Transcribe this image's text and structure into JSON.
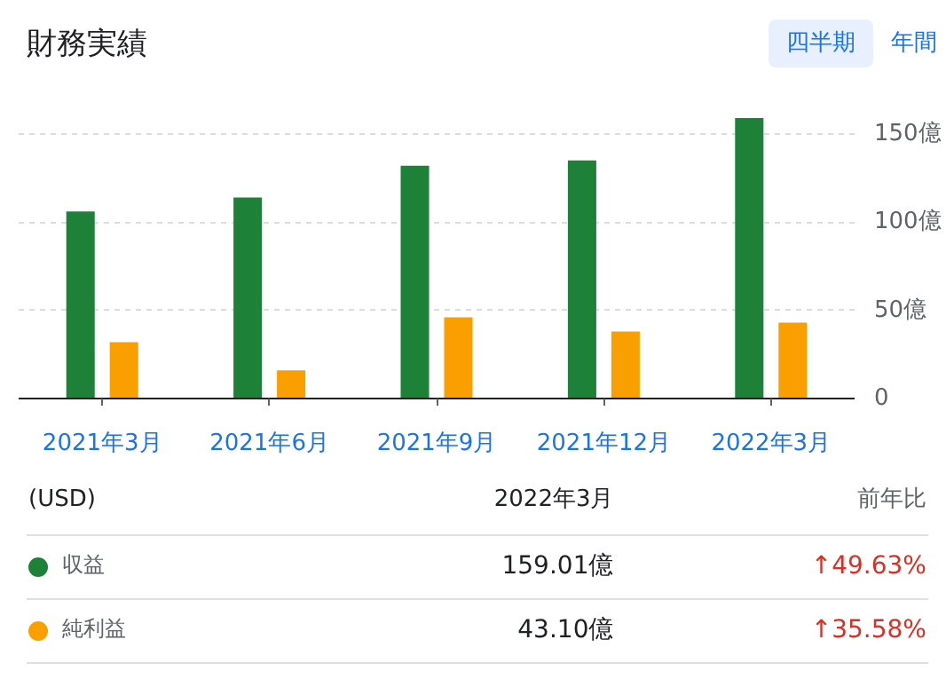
{
  "chart_data": {
    "type": "bar",
    "title": "財務実績",
    "categories": [
      "2021年3月",
      "2021年6月",
      "2021年9月",
      "2021年12月",
      "2022年3月"
    ],
    "series": [
      {
        "name": "収益",
        "color": "#1e8138",
        "values": [
          106,
          114,
          132,
          135,
          159
        ]
      },
      {
        "name": "純利益",
        "color": "#f9a000",
        "values": [
          32,
          16,
          46,
          38,
          43
        ]
      }
    ],
    "ylim": [
      0,
      159
    ],
    "yticks": [
      0,
      {
        "value": 50,
        "label": "50億"
      },
      {
        "value": 100,
        "label": "100億"
      },
      {
        "value": 150,
        "label": "150億"
      }
    ],
    "grid": "y",
    "legend": "bottom",
    "annotations": [
      "四半期",
      "年間",
      "(USD)",
      "2022年3月",
      "前年比",
      "159.01億",
      "43.10億",
      "↑49.63%",
      "↑35.58%"
    ]
  }
}
